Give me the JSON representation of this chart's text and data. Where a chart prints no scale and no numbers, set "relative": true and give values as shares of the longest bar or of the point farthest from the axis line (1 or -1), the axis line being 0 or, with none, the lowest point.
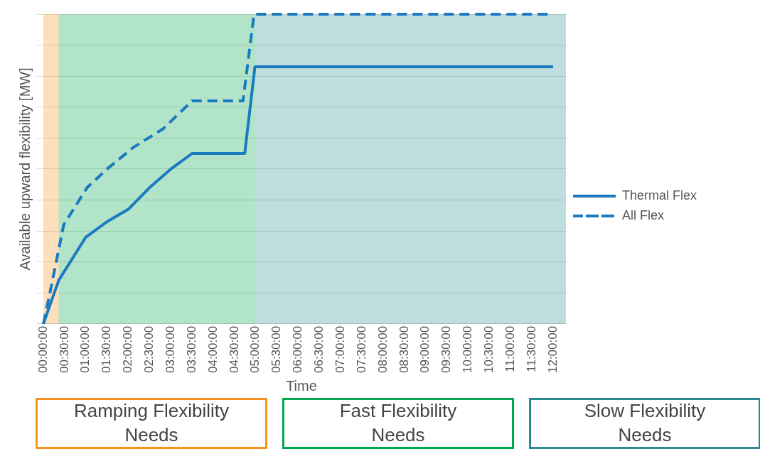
{
  "chart_data": {
    "type": "line",
    "xlabel": "Time",
    "ylabel": "Available upward flexibility [MW]",
    "relative": true,
    "grid": "y",
    "legend": "right",
    "marker": "none",
    "xlim": [
      -0.15,
      12.3
    ],
    "xticks": [
      {
        "value": 0,
        "label": "00:00:00"
      },
      {
        "value": 0.5,
        "label": "00:30:00"
      },
      {
        "value": 1,
        "label": "01:00:00"
      },
      {
        "value": 1.5,
        "label": "01:30:00"
      },
      {
        "value": 2,
        "label": "02:00:00"
      },
      {
        "value": 2.5,
        "label": "02:30:00"
      },
      {
        "value": 3,
        "label": "03:00:00"
      },
      {
        "value": 3.5,
        "label": "03:30:00"
      },
      {
        "value": 4,
        "label": "04:00:00"
      },
      {
        "value": 4.5,
        "label": "04:30:00"
      },
      {
        "value": 5,
        "label": "05:00:00"
      },
      {
        "value": 5.5,
        "label": "05:30:00"
      },
      {
        "value": 6,
        "label": "06:00:00"
      },
      {
        "value": 6.5,
        "label": "06:30:00"
      },
      {
        "value": 7,
        "label": "07:00:00"
      },
      {
        "value": 7.5,
        "label": "07:30:00"
      },
      {
        "value": 8,
        "label": "08:00:00"
      },
      {
        "value": 8.5,
        "label": "08:30:00"
      },
      {
        "value": 9,
        "label": "09:00:00"
      },
      {
        "value": 9.5,
        "label": "09:30:00"
      },
      {
        "value": 10,
        "label": "10:00:00"
      },
      {
        "value": 10.5,
        "label": "10:30:00"
      },
      {
        "value": 11,
        "label": "11:00:00"
      },
      {
        "value": 11.5,
        "label": "11:30:00"
      },
      {
        "value": 12,
        "label": "12:00:00"
      }
    ],
    "series": [
      {
        "name": "Thermal Flex",
        "color": "#1a7abf",
        "line_style": "solid",
        "x": [
          0,
          0.36,
          1,
          1.5,
          2,
          2.5,
          3,
          3.5,
          4.74,
          4.98,
          12
        ],
        "values": [
          0,
          0.14,
          0.28,
          0.33,
          0.37,
          0.44,
          0.5,
          0.55,
          0.55,
          0.83,
          0.83
        ]
      },
      {
        "name": "All Flex",
        "color": "#1a7abf",
        "line_style": "dashed",
        "x": [
          0,
          0.17,
          0.48,
          1.03,
          1.5,
          2.12,
          2.82,
          3.5,
          4.7,
          4.96,
          12
        ],
        "values": [
          0,
          0.11,
          0.32,
          0.44,
          0.5,
          0.57,
          0.63,
          0.72,
          0.72,
          1,
          1
        ]
      }
    ],
    "bands": [
      {
        "axis": "x",
        "from": 0,
        "to": 0.36,
        "color": "#f7941d"
      },
      {
        "axis": "x",
        "from": 0.36,
        "to": 5,
        "color": "#00a650"
      },
      {
        "axis": "x",
        "from": 5,
        "to": 12.3,
        "color": "#2a8a94"
      }
    ],
    "annotations": [
      "Ramping Flexibility Needs",
      "Fast Flexibility Needs",
      "Slow Flexibility Needs"
    ]
  }
}
